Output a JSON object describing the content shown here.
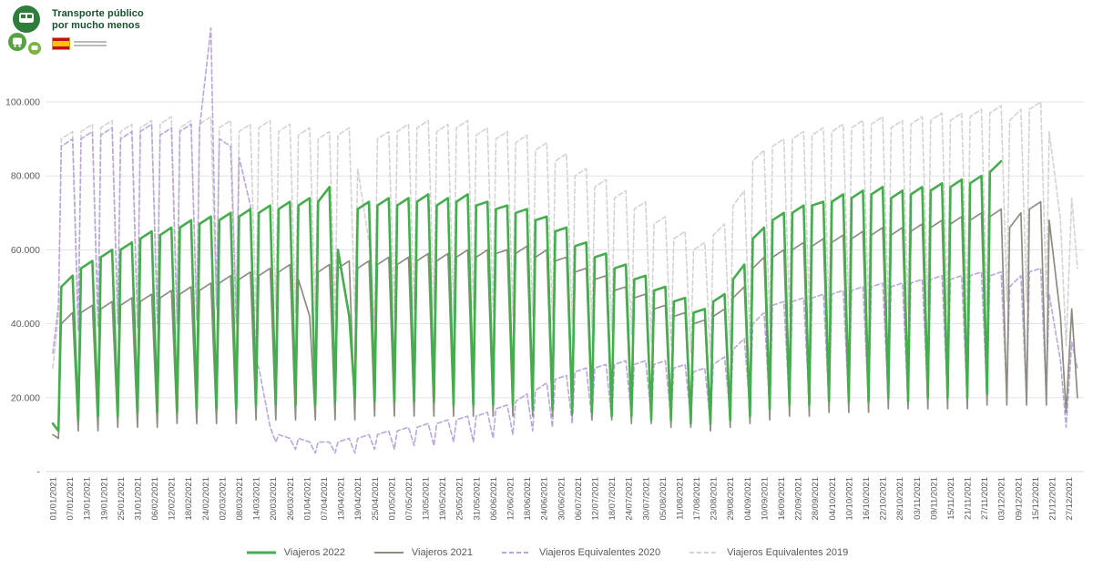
{
  "header": {
    "campaign_line1": "Transporte público",
    "campaign_line2": "por mucho menos",
    "campaign_icon": "green-transit-vehicles-circles-icon",
    "government_icon": "gobierno-de-espana-logo"
  },
  "chart_data": {
    "type": "line",
    "values_unit": "thousands of daily passengers (viajeros)",
    "x_unit": "day of year (0 = 01/01)",
    "grid": "horizontal",
    "legend_position": "bottom",
    "ylim": [
      0,
      120
    ],
    "y_ticks": [
      {
        "value": 0,
        "label": "-"
      },
      {
        "value": 20,
        "label": "20.000"
      },
      {
        "value": 40,
        "label": "40.000"
      },
      {
        "value": 60,
        "label": "60.000"
      },
      {
        "value": 80,
        "label": "80.000"
      },
      {
        "value": 100,
        "label": "100.000"
      }
    ],
    "x_tick_step_days": 6,
    "x_tick_labels": [
      "01/01/2021",
      "07/01/2021",
      "13/01/2021",
      "19/01/2021",
      "25/01/2021",
      "31/01/2021",
      "06/02/2021",
      "12/02/2021",
      "18/02/2021",
      "24/02/2021",
      "02/03/2021",
      "08/03/2021",
      "14/03/2021",
      "20/03/2021",
      "26/03/2021",
      "01/04/2021",
      "07/04/2021",
      "13/04/2021",
      "19/04/2021",
      "25/04/2021",
      "01/05/2021",
      "07/05/2021",
      "13/05/2021",
      "19/05/2021",
      "25/05/2021",
      "31/05/2021",
      "06/06/2021",
      "12/06/2021",
      "18/06/2021",
      "24/06/2021",
      "30/06/2021",
      "06/07/2021",
      "12/07/2021",
      "18/07/2021",
      "24/07/2021",
      "30/07/2021",
      "05/08/2021",
      "11/08/2021",
      "17/08/2021",
      "23/08/2021",
      "29/08/2021",
      "04/09/2021",
      "10/09/2021",
      "16/09/2021",
      "22/09/2021",
      "28/09/2021",
      "04/10/2021",
      "10/10/2021",
      "16/10/2021",
      "22/10/2021",
      "28/10/2021",
      "03/11/2021",
      "09/11/2021",
      "15/11/2021",
      "21/11/2021",
      "27/11/2021",
      "03/12/2021",
      "09/12/2021",
      "15/12/2021",
      "21/12/2021",
      "27/12/2021"
    ],
    "x_days": [
      0,
      2,
      3,
      7,
      9,
      10,
      14,
      16,
      17,
      21,
      23,
      24,
      28,
      30,
      31,
      35,
      37,
      38,
      42,
      44,
      45,
      49,
      51,
      52,
      56,
      58,
      59,
      63,
      65,
      66,
      70,
      72,
      73,
      77,
      79,
      80,
      84,
      86,
      87,
      91,
      93,
      94,
      98,
      100,
      101,
      105,
      107,
      108,
      112,
      114,
      115,
      119,
      121,
      122,
      126,
      128,
      129,
      133,
      135,
      136,
      140,
      142,
      143,
      147,
      149,
      150,
      154,
      156,
      157,
      161,
      163,
      164,
      168,
      170,
      171,
      175,
      177,
      178,
      182,
      184,
      185,
      189,
      191,
      192,
      196,
      198,
      199,
      203,
      205,
      206,
      210,
      212,
      213,
      217,
      219,
      220,
      224,
      226,
      227,
      231,
      233,
      234,
      238,
      240,
      241,
      245,
      247,
      248,
      252,
      254,
      255,
      259,
      261,
      262,
      266,
      268,
      269,
      273,
      275,
      276,
      280,
      282,
      283,
      287,
      289,
      290,
      294,
      296,
      297,
      301,
      303,
      304,
      308,
      310,
      311,
      315,
      317,
      318,
      322,
      324,
      325,
      329,
      331,
      332,
      336,
      338,
      339,
      343,
      345,
      346,
      350,
      352,
      353,
      357,
      359,
      361,
      363
    ],
    "series": [
      {
        "name": "Viajeros 2022",
        "color": "#44ad4c",
        "style": "solid",
        "width": 2.6,
        "values": [
          13,
          11,
          50,
          53,
          14,
          55,
          57,
          15,
          58,
          60,
          15,
          60,
          62,
          16,
          63,
          65,
          16,
          64,
          66,
          16,
          66,
          68,
          17,
          67,
          69,
          17,
          68,
          70,
          17,
          69,
          71,
          18,
          70,
          72,
          18,
          71,
          73,
          18,
          72,
          74,
          18,
          73,
          77,
          19,
          60,
          42,
          20,
          71,
          73,
          19,
          72,
          74,
          19,
          72,
          74,
          19,
          73,
          75,
          19,
          72,
          74,
          18,
          73,
          75,
          18,
          72,
          73,
          18,
          71,
          72,
          18,
          70,
          71,
          17,
          68,
          69,
          17,
          65,
          66,
          16,
          61,
          62,
          16,
          58,
          59,
          15,
          55,
          56,
          15,
          52,
          53,
          14,
          49,
          50,
          14,
          46,
          47,
          13,
          43,
          44,
          13,
          46,
          48,
          14,
          52,
          56,
          15,
          63,
          66,
          17,
          68,
          70,
          18,
          70,
          72,
          18,
          72,
          73,
          19,
          73,
          75,
          19,
          74,
          76,
          19,
          75,
          77,
          20,
          74,
          76,
          19,
          75,
          77,
          20,
          76,
          78,
          20,
          77,
          79,
          20,
          78,
          80,
          21,
          81,
          84,
          null,
          null,
          null,
          null,
          null,
          null,
          null,
          null,
          null,
          null,
          null,
          null
        ]
      },
      {
        "name": "Viajeros 2021",
        "color": "#8e8c81",
        "style": "solid",
        "width": 1.7,
        "values": [
          10,
          9,
          40,
          43,
          11,
          43,
          45,
          11,
          44,
          46,
          12,
          45,
          47,
          12,
          46,
          48,
          12,
          47,
          49,
          13,
          48,
          50,
          13,
          49,
          51,
          13,
          51,
          53,
          13,
          52,
          54,
          14,
          53,
          55,
          14,
          54,
          56,
          14,
          52,
          42,
          14,
          54,
          56,
          14,
          55,
          57,
          14,
          55,
          57,
          15,
          56,
          58,
          15,
          56,
          58,
          15,
          57,
          59,
          15,
          57,
          59,
          15,
          58,
          60,
          15,
          58,
          60,
          15,
          59,
          60,
          15,
          59,
          61,
          15,
          58,
          60,
          15,
          57,
          58,
          15,
          54,
          55,
          14,
          52,
          53,
          14,
          49,
          50,
          13,
          47,
          48,
          13,
          44,
          45,
          12,
          42,
          43,
          12,
          40,
          41,
          11,
          42,
          44,
          12,
          47,
          50,
          13,
          55,
          58,
          14,
          58,
          60,
          15,
          60,
          62,
          15,
          61,
          63,
          16,
          62,
          64,
          16,
          63,
          65,
          16,
          64,
          66,
          17,
          64,
          66,
          17,
          65,
          67,
          17,
          66,
          68,
          17,
          67,
          69,
          17,
          68,
          70,
          18,
          69,
          71,
          18,
          66,
          70,
          18,
          71,
          73,
          18,
          68,
          42,
          16,
          44,
          20
        ]
      },
      {
        "name": "Viajeros Equivalentes 2020",
        "color": "#b9a7da",
        "style": "dashed",
        "width": 1.6,
        "values": [
          32,
          45,
          88,
          90,
          38,
          90,
          92,
          39,
          91,
          93,
          40,
          90,
          92,
          39,
          92,
          94,
          40,
          91,
          93,
          40,
          92,
          94,
          41,
          93,
          120,
          45,
          90,
          88,
          40,
          85,
          72,
          30,
          28,
          12,
          8,
          10,
          9,
          6,
          9,
          8,
          5,
          8,
          8,
          5,
          8,
          9,
          5,
          9,
          10,
          6,
          10,
          11,
          6,
          11,
          12,
          7,
          12,
          13,
          7,
          13,
          14,
          8,
          14,
          15,
          8,
          15,
          16,
          9,
          17,
          18,
          10,
          19,
          21,
          11,
          22,
          24,
          12,
          25,
          26,
          13,
          27,
          28,
          14,
          28,
          29,
          14,
          29,
          30,
          15,
          29,
          30,
          15,
          29,
          30,
          14,
          28,
          29,
          14,
          27,
          28,
          13,
          29,
          31,
          15,
          33,
          36,
          16,
          40,
          43,
          17,
          45,
          46,
          17,
          46,
          47,
          18,
          47,
          48,
          18,
          48,
          49,
          18,
          49,
          50,
          18,
          50,
          51,
          19,
          50,
          51,
          18,
          51,
          52,
          19,
          52,
          53,
          19,
          52,
          53,
          19,
          53,
          54,
          20,
          53,
          54,
          20,
          50,
          53,
          19,
          54,
          55,
          20,
          48,
          30,
          12,
          35,
          28
        ]
      },
      {
        "name": "Viajeros Equivalentes 2019",
        "color": "#d4d2d2",
        "style": "dashed",
        "width": 1.6,
        "values": [
          28,
          42,
          90,
          92,
          42,
          92,
          94,
          43,
          93,
          95,
          43,
          92,
          94,
          43,
          93,
          95,
          44,
          94,
          96,
          44,
          93,
          95,
          44,
          94,
          96,
          44,
          93,
          95,
          44,
          92,
          94,
          43,
          93,
          95,
          44,
          92,
          94,
          43,
          91,
          93,
          43,
          90,
          92,
          42,
          91,
          93,
          43,
          82,
          62,
          40,
          90,
          92,
          43,
          92,
          94,
          44,
          93,
          95,
          44,
          92,
          94,
          43,
          93,
          95,
          44,
          91,
          93,
          43,
          90,
          92,
          42,
          89,
          91,
          42,
          87,
          89,
          41,
          84,
          86,
          40,
          80,
          82,
          39,
          77,
          79,
          38,
          74,
          76,
          37,
          71,
          73,
          35,
          67,
          69,
          34,
          63,
          65,
          32,
          60,
          62,
          31,
          64,
          67,
          33,
          72,
          76,
          36,
          84,
          87,
          40,
          88,
          90,
          42,
          90,
          92,
          43,
          91,
          93,
          43,
          92,
          94,
          44,
          93,
          95,
          44,
          94,
          96,
          44,
          93,
          95,
          44,
          94,
          96,
          45,
          95,
          97,
          45,
          95,
          97,
          45,
          96,
          98,
          45,
          97,
          99,
          46,
          95,
          98,
          46,
          98,
          100,
          47,
          92,
          68,
          34,
          74,
          55
        ]
      }
    ]
  }
}
